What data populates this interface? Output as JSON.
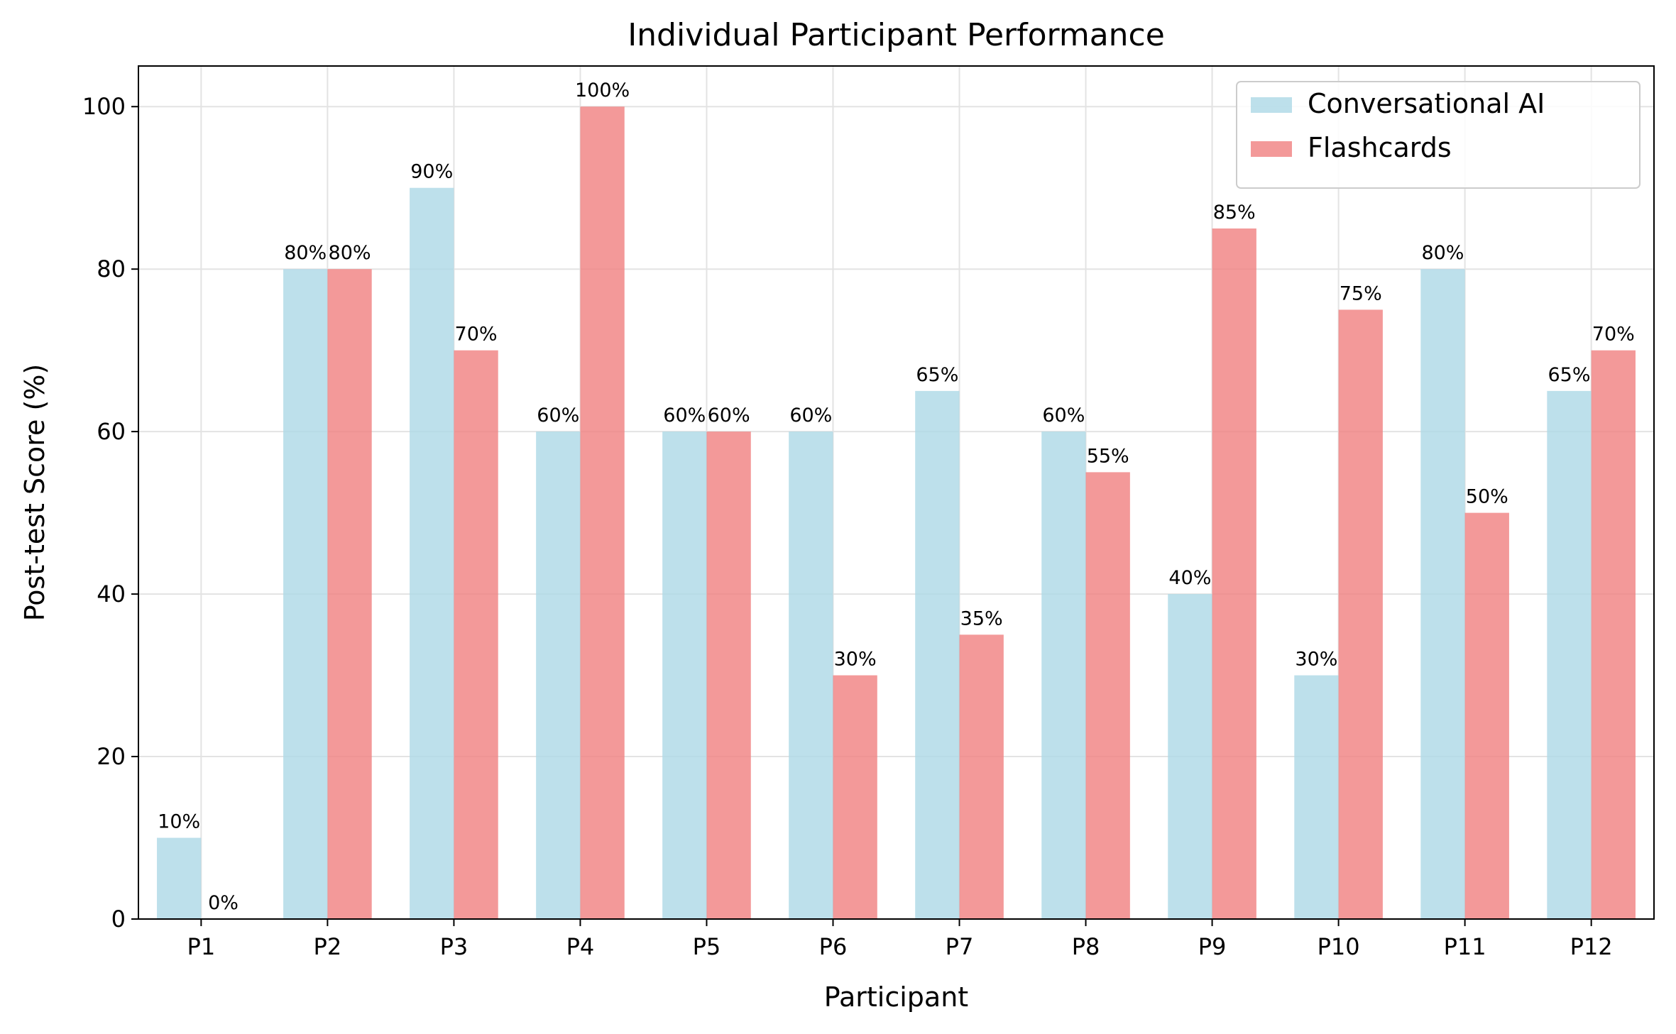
{
  "chart_data": {
    "type": "bar",
    "title": "Individual Participant Performance",
    "xlabel": "Participant",
    "ylabel": "Post-test Score (%)",
    "categories": [
      "P1",
      "P2",
      "P3",
      "P4",
      "P5",
      "P6",
      "P7",
      "P8",
      "P9",
      "P10",
      "P11",
      "P12"
    ],
    "series": [
      {
        "name": "Conversational AI",
        "color": "#add8e6",
        "values": [
          10,
          80,
          90,
          60,
          60,
          60,
          65,
          60,
          40,
          30,
          80,
          65
        ]
      },
      {
        "name": "Flashcards",
        "color": "#f08080",
        "values": [
          0,
          80,
          70,
          100,
          60,
          30,
          35,
          55,
          85,
          75,
          50,
          70
        ]
      }
    ],
    "ylim": [
      0,
      105
    ],
    "yticks": [
      0,
      20,
      40,
      60,
      80,
      100
    ],
    "value_label_suffix": "%",
    "grid": true,
    "legend_position": "top-right"
  }
}
